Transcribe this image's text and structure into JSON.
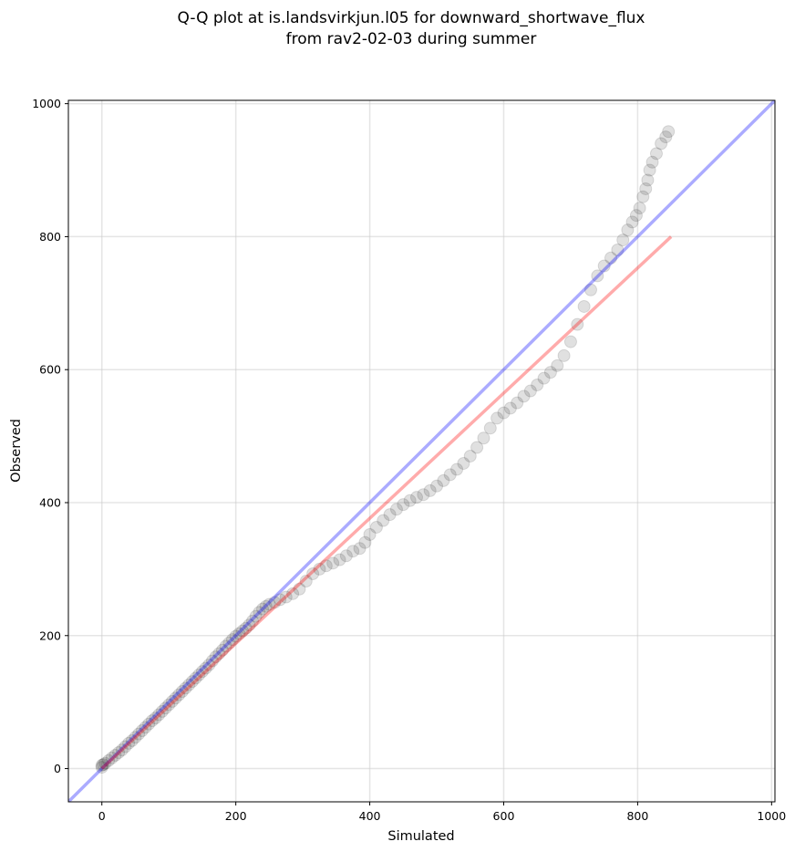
{
  "chart_data": {
    "type": "scatter",
    "title_lines": [
      "Q-Q plot at is.landsvirkjun.l05 for downward_shortwave_flux",
      "from rav2-02-03 during summer"
    ],
    "xlabel": "Simulated",
    "ylabel": "Observed",
    "xlim": [
      -50,
      1005
    ],
    "ylim": [
      -50,
      1005
    ],
    "x_ticks": [
      0,
      200,
      400,
      600,
      800,
      1000
    ],
    "y_ticks": [
      0,
      200,
      400,
      600,
      800,
      1000
    ],
    "x_tick_labels": [
      "0",
      "200",
      "400",
      "600",
      "800",
      "1000"
    ],
    "y_tick_labels": [
      "0",
      "200",
      "400",
      "600",
      "800",
      "1000"
    ],
    "grid": true,
    "colors": {
      "points": "#000000",
      "identity_line": "#0000ff",
      "fit_line": "#ff0000",
      "grid": "#cccccc"
    },
    "identity_line": {
      "x": [
        -50,
        1005
      ],
      "y": [
        -50,
        1005
      ]
    },
    "fit_line": {
      "x": [
        0,
        850
      ],
      "y": [
        0,
        800
      ]
    },
    "points": [
      [
        0,
        2
      ],
      [
        0,
        5
      ],
      [
        2,
        6
      ],
      [
        5,
        8
      ],
      [
        10,
        12
      ],
      [
        15,
        16
      ],
      [
        20,
        20
      ],
      [
        25,
        24
      ],
      [
        30,
        28
      ],
      [
        35,
        33
      ],
      [
        40,
        38
      ],
      [
        45,
        42
      ],
      [
        50,
        47
      ],
      [
        55,
        52
      ],
      [
        60,
        57
      ],
      [
        65,
        62
      ],
      [
        70,
        67
      ],
      [
        75,
        72
      ],
      [
        80,
        76
      ],
      [
        85,
        81
      ],
      [
        90,
        86
      ],
      [
        95,
        91
      ],
      [
        100,
        96
      ],
      [
        105,
        101
      ],
      [
        110,
        106
      ],
      [
        115,
        111
      ],
      [
        120,
        116
      ],
      [
        125,
        121
      ],
      [
        130,
        126
      ],
      [
        135,
        131
      ],
      [
        140,
        136
      ],
      [
        145,
        141
      ],
      [
        150,
        146
      ],
      [
        155,
        151
      ],
      [
        160,
        156
      ],
      [
        165,
        162
      ],
      [
        170,
        168
      ],
      [
        175,
        173
      ],
      [
        180,
        178
      ],
      [
        185,
        184
      ],
      [
        190,
        189
      ],
      [
        195,
        194
      ],
      [
        200,
        199
      ],
      [
        205,
        203
      ],
      [
        210,
        207
      ],
      [
        215,
        211
      ],
      [
        220,
        216
      ],
      [
        225,
        222
      ],
      [
        230,
        229
      ],
      [
        235,
        235
      ],
      [
        240,
        240
      ],
      [
        245,
        244
      ],
      [
        250,
        247
      ],
      [
        258,
        250
      ],
      [
        266,
        254
      ],
      [
        275,
        258
      ],
      [
        285,
        263
      ],
      [
        295,
        270
      ],
      [
        305,
        282
      ],
      [
        315,
        293
      ],
      [
        325,
        300
      ],
      [
        335,
        305
      ],
      [
        345,
        309
      ],
      [
        355,
        314
      ],
      [
        365,
        320
      ],
      [
        375,
        327
      ],
      [
        385,
        331
      ],
      [
        393,
        340
      ],
      [
        400,
        352
      ],
      [
        410,
        363
      ],
      [
        420,
        373
      ],
      [
        430,
        382
      ],
      [
        440,
        390
      ],
      [
        450,
        397
      ],
      [
        460,
        403
      ],
      [
        470,
        408
      ],
      [
        480,
        412
      ],
      [
        490,
        418
      ],
      [
        500,
        425
      ],
      [
        510,
        433
      ],
      [
        520,
        442
      ],
      [
        530,
        450
      ],
      [
        540,
        459
      ],
      [
        550,
        470
      ],
      [
        560,
        483
      ],
      [
        570,
        497
      ],
      [
        580,
        512
      ],
      [
        590,
        527
      ],
      [
        600,
        535
      ],
      [
        610,
        542
      ],
      [
        620,
        550
      ],
      [
        630,
        560
      ],
      [
        640,
        568
      ],
      [
        650,
        577
      ],
      [
        660,
        587
      ],
      [
        670,
        596
      ],
      [
        680,
        606
      ],
      [
        690,
        621
      ],
      [
        700,
        642
      ],
      [
        710,
        668
      ],
      [
        720,
        695
      ],
      [
        730,
        720
      ],
      [
        740,
        741
      ],
      [
        750,
        756
      ],
      [
        760,
        768
      ],
      [
        770,
        780
      ],
      [
        778,
        795
      ],
      [
        785,
        810
      ],
      [
        792,
        822
      ],
      [
        798,
        832
      ],
      [
        803,
        843
      ],
      [
        808,
        860
      ],
      [
        812,
        872
      ],
      [
        815,
        885
      ],
      [
        818,
        900
      ],
      [
        822,
        912
      ],
      [
        828,
        925
      ],
      [
        835,
        940
      ],
      [
        842,
        950
      ],
      [
        846,
        958
      ]
    ]
  }
}
